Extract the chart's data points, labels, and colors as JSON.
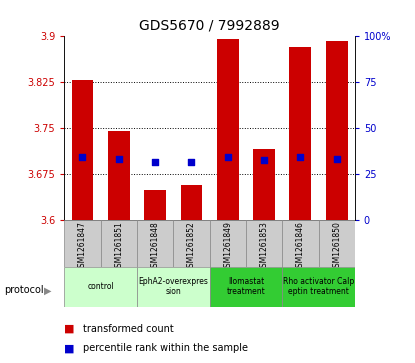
{
  "title": "GDS5670 / 7992889",
  "samples": [
    "GSM1261847",
    "GSM1261851",
    "GSM1261848",
    "GSM1261852",
    "GSM1261849",
    "GSM1261853",
    "GSM1261846",
    "GSM1261850"
  ],
  "bar_values": [
    3.828,
    3.745,
    3.648,
    3.657,
    3.895,
    3.715,
    3.882,
    3.893
  ],
  "bar_base": 3.6,
  "percentile_values": [
    3.703,
    3.7,
    3.695,
    3.695,
    3.703,
    3.698,
    3.703,
    3.7
  ],
  "ylim_left": [
    3.6,
    3.9
  ],
  "ylim_right": [
    0,
    100
  ],
  "yticks_left": [
    3.6,
    3.675,
    3.75,
    3.825,
    3.9
  ],
  "yticks_right": [
    0,
    25,
    50,
    75,
    100
  ],
  "ytick_labels_left": [
    "3.6",
    "3.675",
    "3.75",
    "3.825",
    "3.9"
  ],
  "ytick_labels_right": [
    "0",
    "25",
    "50",
    "75",
    "100%"
  ],
  "bar_color": "#cc0000",
  "dot_color": "#0000cc",
  "protocol_groups": [
    {
      "label": "control",
      "indices": [
        0,
        1
      ],
      "color": "#ccffcc"
    },
    {
      "label": "EphA2-overexpres\nsion",
      "indices": [
        2,
        3
      ],
      "color": "#ccffcc"
    },
    {
      "label": "Ilomastat\ntreatment",
      "indices": [
        4,
        5
      ],
      "color": "#33cc33"
    },
    {
      "label": "Rho activator Calp\neptin treatment",
      "indices": [
        6,
        7
      ],
      "color": "#33cc33"
    }
  ],
  "protocol_label": "protocol",
  "legend_bar_label": "transformed count",
  "legend_dot_label": "percentile rank within the sample",
  "background_color": "#ffffff",
  "plot_bg_color": "#ffffff",
  "bar_width": 0.6,
  "sample_box_color": "#cccccc",
  "sample_box_edge": "#888888"
}
